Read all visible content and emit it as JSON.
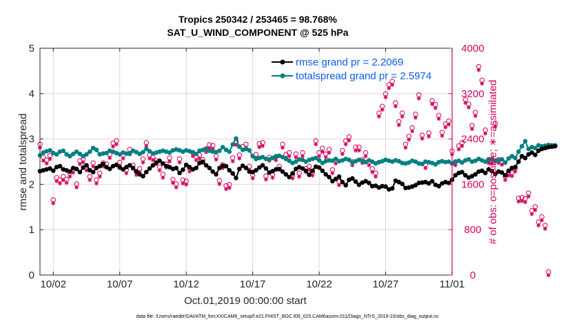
{
  "chart_data": {
    "type": "line",
    "title": "Tropics 250342 / 253465 = 98.768%",
    "subtitle": "SAT_U_WIND_COMPONENT @ 525 hPa",
    "xlabel": "Oct.01,2019 00:00:00 start",
    "ylabel": "rmse and totalspread",
    "y2label": "# of obs: o=possible; ∗=assimilated",
    "x_range_days": [
      1,
      32
    ],
    "xtick_days": [
      2,
      7,
      12,
      17,
      22,
      27,
      32
    ],
    "xtick_labels": [
      "10/02",
      "10/07",
      "10/12",
      "10/17",
      "10/22",
      "10/27",
      "11/01"
    ],
    "ylim": [
      0,
      5
    ],
    "yticks": [
      0,
      1,
      2,
      3,
      4,
      5
    ],
    "y2lim": [
      0,
      4000
    ],
    "y2ticks": [
      0,
      800,
      1600,
      2400,
      3200,
      4000
    ],
    "grid": true,
    "legend_position": "top-right",
    "legend": [
      {
        "label": "rmse grand pr = 2.2069",
        "color": "#000000"
      },
      {
        "label": "totalspread grand pr = 2.5974",
        "color": "#008080"
      }
    ],
    "colors": {
      "rmse": "#000000",
      "totalspread": "#008080",
      "obs": "#d6005b",
      "grid": "#d9d9d9",
      "hgrid": "#f3cfdc"
    },
    "x_start_day": 1.0,
    "x_step_days": 0.25,
    "series": [
      {
        "name": "rmse",
        "values": [
          2.29,
          2.31,
          2.33,
          2.35,
          2.3,
          2.38,
          2.4,
          2.33,
          2.31,
          2.28,
          2.36,
          2.34,
          2.27,
          2.37,
          2.42,
          2.31,
          2.27,
          2.36,
          2.4,
          2.45,
          2.38,
          2.34,
          2.4,
          2.43,
          2.37,
          2.33,
          2.38,
          2.42,
          2.36,
          2.28,
          2.22,
          2.18,
          2.27,
          2.35,
          2.42,
          2.48,
          2.52,
          2.46,
          2.4,
          2.38,
          2.34,
          2.36,
          2.25,
          2.32,
          2.43,
          2.38,
          2.33,
          2.36,
          2.47,
          2.5,
          2.42,
          2.36,
          2.28,
          2.22,
          2.36,
          2.41,
          2.4,
          2.31,
          2.24,
          2.14,
          2.34,
          2.41,
          2.36,
          2.28,
          2.27,
          2.31,
          2.37,
          2.42,
          2.35,
          2.26,
          2.29,
          2.33,
          2.34,
          2.28,
          2.22,
          2.16,
          2.24,
          2.34,
          2.38,
          2.35,
          2.3,
          2.21,
          2.3,
          2.39,
          2.37,
          2.3,
          2.22,
          2.16,
          2.07,
          2.12,
          2.17,
          2.05,
          1.98,
          2.1,
          2.13,
          2.06,
          1.99,
          2.04,
          2.07,
          2.03,
          1.96,
          1.97,
          1.93,
          1.96,
          1.95,
          1.89,
          1.91,
          2.08,
          2.05,
          2.01,
          1.92,
          1.93,
          1.95,
          1.98,
          2.03,
          2.04,
          2.05,
          2.02,
          2.07,
          1.99,
          1.96,
          2.02,
          2.05,
          2.03
        ],
        "values_tail": [
          2.1,
          2.2,
          2.25,
          2.27,
          2.2,
          2.15,
          2.18,
          2.22,
          2.28,
          2.3,
          2.25,
          2.33,
          2.29,
          2.23,
          2.28,
          2.26,
          2.2,
          2.3,
          2.36,
          2.38,
          2.5,
          2.62,
          2.58,
          2.66,
          2.7,
          2.65,
          2.74,
          2.78,
          2.8,
          2.82,
          2.83,
          2.84
        ]
      },
      {
        "name": "totalspread",
        "values": [
          2.64,
          2.7,
          2.73,
          2.75,
          2.69,
          2.66,
          2.72,
          2.74,
          2.66,
          2.62,
          2.67,
          2.72,
          2.67,
          2.62,
          2.66,
          2.72,
          2.8,
          2.76,
          2.66,
          2.68,
          2.69,
          2.74,
          2.72,
          2.69,
          2.66,
          2.7,
          2.68,
          2.67,
          2.74,
          2.71,
          2.67,
          2.71,
          2.78,
          2.73,
          2.68,
          2.7,
          2.72,
          2.74,
          2.72,
          2.7,
          2.75,
          2.77,
          2.75,
          2.72,
          2.75,
          2.73,
          2.71,
          2.67,
          2.74,
          2.76,
          2.77,
          2.74,
          2.72,
          2.71,
          2.74,
          2.82,
          2.76,
          2.72,
          2.88,
          3.01,
          2.83,
          2.76,
          2.78,
          2.75,
          2.62,
          2.56,
          2.58,
          2.6,
          2.56,
          2.55,
          2.58,
          2.62,
          2.63,
          2.6,
          2.56,
          2.52,
          2.47,
          2.5,
          2.55,
          2.54,
          2.5,
          2.54,
          2.56,
          2.58,
          2.53,
          2.47,
          2.51,
          2.53,
          2.52,
          2.56,
          2.51,
          2.53,
          2.56,
          2.54,
          2.48,
          2.51,
          2.54,
          2.52,
          2.49,
          2.53,
          2.5,
          2.46,
          2.49,
          2.51,
          2.54,
          2.52,
          2.5,
          2.53,
          2.51,
          2.47,
          2.46,
          2.48,
          2.52,
          2.5,
          2.46,
          2.45,
          2.5,
          2.49,
          2.47,
          2.44,
          2.49,
          2.51,
          2.49,
          2.5
        ],
        "values_tail": [
          2.46,
          2.5,
          2.52,
          2.48,
          2.53,
          2.55,
          2.5,
          2.52,
          2.56,
          2.53,
          2.5,
          2.54,
          2.56,
          2.51,
          2.53,
          2.55,
          2.48,
          2.57,
          2.62,
          2.58,
          2.72,
          2.84,
          2.95,
          2.78,
          2.82,
          2.8,
          2.86,
          2.84,
          2.85,
          2.87,
          2.86,
          2.86
        ]
      }
    ],
    "obs_counts": {
      "x_start_day": 1.0,
      "x_step_days": 0.25,
      "assimilated": [
        2270,
        2040,
        1990,
        2070,
        1290,
        1680,
        1640,
        1700,
        1650,
        1760,
        1830,
        1570,
        1980,
        2010,
        1870,
        1700,
        1940,
        1640,
        1760,
        1940,
        1920,
        2090,
        2290,
        2330,
        1950,
        2080,
        1820,
        2180,
        1900,
        1790,
        1840,
        2010,
        2300,
        2080,
        2050,
        1980,
        1870,
        1740,
        1920,
        2030,
        1650,
        1570,
        2010,
        1640,
        1620,
        1850,
        2120,
        2050,
        2080,
        2000,
        2190,
        2260,
        2250,
        2060,
        1630,
        1910,
        1540,
        1560,
        2030,
        2320,
        2080,
        2230,
        2270,
        1880,
        1730,
        2090,
        2280,
        2300,
        1710,
        2040,
        1740,
        2050,
        1880,
        2270,
        2090,
        2120,
        1730,
        2100,
        1760,
        2120,
        1840,
        1880,
        1780,
        2330,
        2120,
        2200,
        2100,
        2180,
        1820,
        1990,
        1610,
        2160,
        2330,
        2400,
        1960,
        2220,
        2220,
        2000,
        2120,
        1960,
        1840,
        1760,
        2820,
        2940,
        3160,
        3320,
        3380,
        3000,
        2670,
        2820,
        2270,
        2410,
        2560,
        2800,
        3140,
        2430,
        1910,
        2470,
        3040,
        2970,
        2780,
        2480
      ],
      "assimilated_tail": [
        2630,
        2680,
        2150,
        1960,
        2240,
        2300,
        3060,
        2980,
        2600,
        2830,
        3640,
        3400,
        2520,
        2000,
        1990,
        2640,
        2000,
        1970,
        1700,
        1780,
        1770,
        1850,
        1320,
        1330,
        1310,
        1410,
        1100,
        1170,
        900,
        990,
        840,
        20
      ]
    }
  },
  "footer": "data file: /Users/raeder/DAI/ATM_forcXX/CAM6_setup/f.e21.FHIST_BGC.f09_025.CAM6assim.011/Diags_NTrS_2019-10/obs_diag_output.nc"
}
